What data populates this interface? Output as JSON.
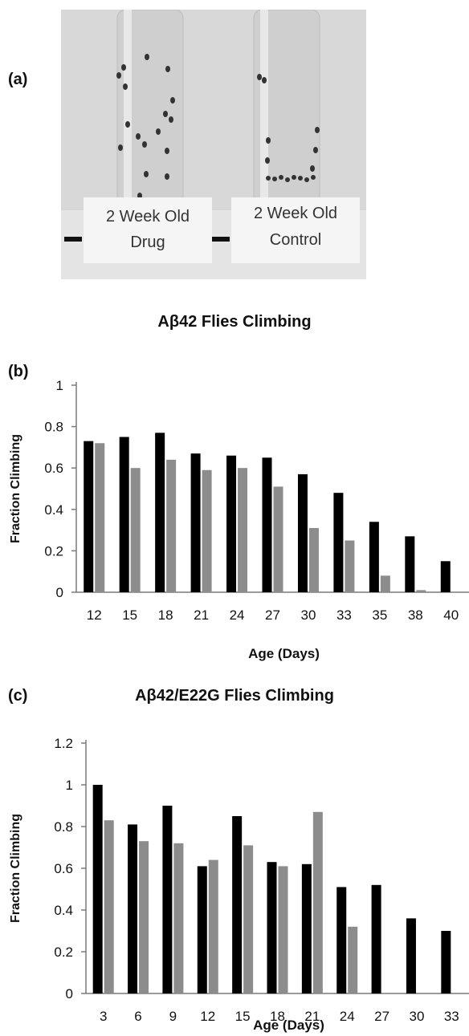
{
  "panel_a": {
    "label": "(a)",
    "left_tube_label": [
      "2 Week Old",
      "Drug"
    ],
    "right_tube_label": [
      "2 Week Old",
      "Control"
    ]
  },
  "panel_b_label": "(b)",
  "panel_c_label": "(c)",
  "colors": {
    "series1": "#000000",
    "series2": "#8c8c8c",
    "axis": "#7a7a7a"
  },
  "chart_data": [
    {
      "type": "bar",
      "title": "Aβ42 Flies Climbing",
      "xlabel": "Age (Days)",
      "ylabel": "Fraction Climbing",
      "ylim": [
        0,
        1
      ],
      "yticks": [
        0,
        0.2,
        0.4,
        0.6,
        0.8,
        1
      ],
      "ytick_labels": [
        "0",
        "0.2",
        "0.4",
        "0.6",
        "0.8",
        "1"
      ],
      "categories": [
        "12",
        "15",
        "18",
        "21",
        "24",
        "27",
        "30",
        "33",
        "35",
        "38",
        "40"
      ],
      "series": [
        {
          "values": [
            0.73,
            0.75,
            0.77,
            0.67,
            0.66,
            0.65,
            0.57,
            0.48,
            0.34,
            0.27,
            0.15
          ]
        },
        {
          "values": [
            0.72,
            0.6,
            0.64,
            0.59,
            0.6,
            0.51,
            0.31,
            0.25,
            0.08,
            0.01,
            0
          ]
        }
      ],
      "grid": false
    },
    {
      "type": "bar",
      "title": "Aβ42/E22G Flies Climbing",
      "xlabel": "Age (Days)",
      "ylabel": "Fraction Climbing",
      "ylim": [
        0,
        1.2
      ],
      "yticks": [
        0,
        0.2,
        0.4,
        0.6,
        0.8,
        1,
        1.2
      ],
      "ytick_labels": [
        "0",
        "0.2",
        "0.4",
        "0.6",
        "0.8",
        "1",
        "1.2"
      ],
      "categories": [
        "3",
        "6",
        "9",
        "12",
        "15",
        "18",
        "21",
        "24",
        "27",
        "30",
        "33"
      ],
      "series": [
        {
          "values": [
            1.0,
            0.81,
            0.9,
            0.61,
            0.85,
            0.63,
            0.62,
            0.51,
            0.52,
            0.36,
            0.3
          ]
        },
        {
          "values": [
            0.83,
            0.73,
            0.72,
            0.64,
            0.71,
            0.61,
            0.87,
            0.32,
            0,
            0,
            0
          ]
        }
      ],
      "grid": false
    }
  ]
}
